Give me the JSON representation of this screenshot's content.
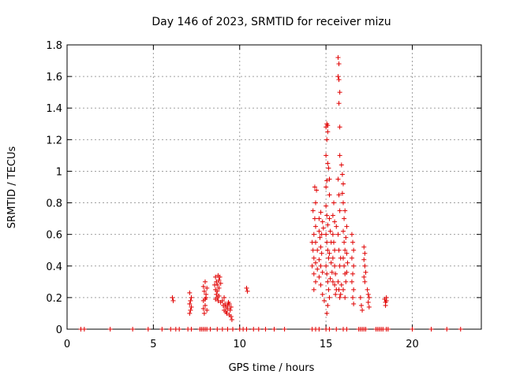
{
  "chart_data": {
    "type": "scatter",
    "title": "Day 146 of 2023, SRMTID for receiver mizu",
    "xlabel": "GPS time / hours",
    "ylabel": "SRMTID / TECUs",
    "xlim": [
      0,
      24
    ],
    "ylim": [
      0,
      1.8
    ],
    "xticks": [
      0,
      5,
      10,
      15,
      20
    ],
    "xtick_labels": [
      "0",
      "5",
      "10",
      "15",
      "20"
    ],
    "yticks": [
      0,
      0.2,
      0.4,
      0.6,
      0.8,
      1.0,
      1.2,
      1.4,
      1.6,
      1.8
    ],
    "ytick_labels": [
      "0",
      "0.2",
      "0.4",
      "0.6",
      "0.8",
      "1",
      "1.2",
      "1.4",
      "1.6",
      "1.8"
    ],
    "grid": true,
    "marker": "+",
    "marker_color": "#e00000",
    "series": [
      {
        "name": "mizu",
        "points": [
          [
            0.8,
            0.0
          ],
          [
            1.0,
            0.0
          ],
          [
            2.5,
            0.0
          ],
          [
            3.8,
            0.0
          ],
          [
            4.7,
            0.0
          ],
          [
            5.5,
            0.0
          ],
          [
            6.0,
            0.0
          ],
          [
            6.3,
            0.0
          ],
          [
            6.5,
            0.0
          ],
          [
            7.0,
            0.0
          ],
          [
            7.2,
            0.0
          ],
          [
            7.7,
            0.0
          ],
          [
            7.8,
            0.0
          ],
          [
            7.9,
            0.0
          ],
          [
            8.0,
            0.0
          ],
          [
            8.1,
            0.0
          ],
          [
            8.3,
            0.0
          ],
          [
            8.7,
            0.0
          ],
          [
            9.0,
            0.0
          ],
          [
            9.3,
            0.0
          ],
          [
            9.6,
            0.0
          ],
          [
            10.0,
            0.0
          ],
          [
            10.2,
            0.0
          ],
          [
            10.4,
            0.0
          ],
          [
            10.8,
            0.0
          ],
          [
            11.1,
            0.0
          ],
          [
            11.5,
            0.0
          ],
          [
            12.0,
            0.0
          ],
          [
            12.6,
            0.0
          ],
          [
            14.2,
            0.0
          ],
          [
            14.4,
            0.0
          ],
          [
            14.6,
            0.0
          ],
          [
            15.0,
            0.0
          ],
          [
            15.2,
            0.0
          ],
          [
            15.6,
            0.0
          ],
          [
            16.0,
            0.0
          ],
          [
            16.2,
            0.0
          ],
          [
            16.9,
            0.0
          ],
          [
            17.0,
            0.0
          ],
          [
            17.1,
            0.0
          ],
          [
            17.2,
            0.0
          ],
          [
            17.3,
            0.0
          ],
          [
            17.9,
            0.0
          ],
          [
            18.0,
            0.0
          ],
          [
            18.1,
            0.0
          ],
          [
            18.2,
            0.0
          ],
          [
            18.3,
            0.0
          ],
          [
            18.5,
            0.0
          ],
          [
            18.6,
            0.0
          ],
          [
            20.0,
            0.0
          ],
          [
            21.1,
            0.0
          ],
          [
            22.0,
            0.0
          ],
          [
            22.8,
            0.0
          ],
          [
            6.1,
            0.2
          ],
          [
            6.15,
            0.18
          ],
          [
            7.1,
            0.23
          ],
          [
            7.15,
            0.18
          ],
          [
            7.1,
            0.16
          ],
          [
            7.2,
            0.14
          ],
          [
            7.15,
            0.12
          ],
          [
            7.2,
            0.2
          ],
          [
            7.1,
            0.1
          ],
          [
            7.9,
            0.27
          ],
          [
            7.95,
            0.24
          ],
          [
            8.0,
            0.3
          ],
          [
            8.05,
            0.22
          ],
          [
            7.9,
            0.18
          ],
          [
            8.0,
            0.15
          ],
          [
            8.1,
            0.12
          ],
          [
            7.95,
            0.1
          ],
          [
            8.05,
            0.2
          ],
          [
            8.1,
            0.26
          ],
          [
            8.0,
            0.19
          ],
          [
            7.9,
            0.13
          ],
          [
            8.6,
            0.33
          ],
          [
            8.65,
            0.3
          ],
          [
            8.7,
            0.28
          ],
          [
            8.75,
            0.34
          ],
          [
            8.8,
            0.31
          ],
          [
            8.6,
            0.25
          ],
          [
            8.65,
            0.22
          ],
          [
            8.7,
            0.2
          ],
          [
            8.75,
            0.18
          ],
          [
            8.8,
            0.26
          ],
          [
            8.85,
            0.33
          ],
          [
            8.9,
            0.29
          ],
          [
            8.6,
            0.19
          ],
          [
            8.7,
            0.24
          ],
          [
            8.8,
            0.21
          ],
          [
            8.9,
            0.17
          ],
          [
            8.55,
            0.28
          ],
          [
            9.0,
            0.18
          ],
          [
            9.05,
            0.15
          ],
          [
            9.1,
            0.12
          ],
          [
            9.15,
            0.16
          ],
          [
            9.2,
            0.14
          ],
          [
            9.25,
            0.1
          ],
          [
            9.3,
            0.13
          ],
          [
            9.35,
            0.17
          ],
          [
            9.4,
            0.09
          ],
          [
            9.45,
            0.12
          ],
          [
            9.5,
            0.08
          ],
          [
            9.55,
            0.06
          ],
          [
            9.1,
            0.2
          ],
          [
            9.2,
            0.11
          ],
          [
            9.3,
            0.15
          ],
          [
            9.4,
            0.16
          ],
          [
            9.5,
            0.14
          ],
          [
            10.4,
            0.26
          ],
          [
            10.45,
            0.24
          ],
          [
            14.2,
            0.55
          ],
          [
            14.25,
            0.5
          ],
          [
            14.3,
            0.45
          ],
          [
            14.2,
            0.4
          ],
          [
            14.3,
            0.35
          ],
          [
            14.4,
            0.3
          ],
          [
            14.3,
            0.25
          ],
          [
            14.25,
            0.75
          ],
          [
            14.35,
            0.7
          ],
          [
            14.4,
            0.65
          ],
          [
            14.3,
            0.6
          ],
          [
            14.4,
            0.8
          ],
          [
            14.45,
            0.88
          ],
          [
            14.35,
            0.9
          ],
          [
            14.4,
            0.42
          ],
          [
            14.5,
            0.5
          ],
          [
            14.5,
            0.38
          ],
          [
            14.4,
            0.55
          ],
          [
            14.6,
            0.62
          ],
          [
            14.65,
            0.58
          ],
          [
            14.7,
            0.52
          ],
          [
            14.75,
            0.48
          ],
          [
            14.6,
            0.44
          ],
          [
            14.7,
            0.4
          ],
          [
            14.8,
            0.36
          ],
          [
            14.6,
            0.7
          ],
          [
            14.7,
            0.74
          ],
          [
            14.8,
            0.68
          ],
          [
            14.6,
            0.33
          ],
          [
            14.7,
            0.28
          ],
          [
            14.8,
            0.22
          ],
          [
            14.9,
            0.18
          ],
          [
            14.75,
            0.6
          ],
          [
            14.85,
            0.64
          ],
          [
            15.0,
            0.9
          ],
          [
            15.05,
            0.94
          ],
          [
            15.1,
            1.05
          ],
          [
            15.0,
            1.1
          ],
          [
            15.05,
            1.2
          ],
          [
            15.1,
            1.25
          ],
          [
            15.0,
            1.28
          ],
          [
            15.05,
            1.3
          ],
          [
            15.1,
            1.29
          ],
          [
            15.0,
            0.78
          ],
          [
            15.05,
            0.72
          ],
          [
            15.1,
            0.66
          ],
          [
            15.0,
            0.6
          ],
          [
            15.05,
            0.55
          ],
          [
            15.1,
            0.5
          ],
          [
            15.15,
            0.45
          ],
          [
            15.0,
            0.4
          ],
          [
            15.05,
            0.35
          ],
          [
            15.1,
            0.3
          ],
          [
            15.15,
            0.25
          ],
          [
            15.2,
            0.2
          ],
          [
            15.1,
            0.15
          ],
          [
            15.05,
            0.1
          ],
          [
            15.2,
            0.85
          ],
          [
            15.2,
            0.7
          ],
          [
            15.25,
            0.62
          ],
          [
            15.3,
            0.55
          ],
          [
            15.2,
            0.48
          ],
          [
            15.3,
            0.42
          ],
          [
            15.35,
            0.36
          ],
          [
            15.25,
            0.32
          ],
          [
            15.15,
            1.02
          ],
          [
            15.2,
            0.95
          ],
          [
            15.4,
            0.6
          ],
          [
            15.45,
            0.55
          ],
          [
            15.5,
            0.5
          ],
          [
            15.4,
            0.45
          ],
          [
            15.5,
            0.4
          ],
          [
            15.55,
            0.35
          ],
          [
            15.4,
            0.3
          ],
          [
            15.5,
            0.28
          ],
          [
            15.6,
            0.25
          ],
          [
            15.55,
            0.22
          ],
          [
            15.4,
            0.72
          ],
          [
            15.5,
            0.68
          ],
          [
            15.45,
            0.8
          ],
          [
            15.6,
            0.65
          ],
          [
            15.7,
            1.72
          ],
          [
            15.75,
            1.68
          ],
          [
            15.7,
            1.6
          ],
          [
            15.75,
            1.58
          ],
          [
            15.8,
            1.5
          ],
          [
            15.75,
            1.43
          ],
          [
            15.8,
            1.28
          ],
          [
            15.8,
            1.1
          ],
          [
            15.7,
            0.95
          ],
          [
            15.75,
            0.85
          ],
          [
            15.8,
            0.75
          ],
          [
            15.7,
            0.6
          ],
          [
            15.75,
            0.5
          ],
          [
            15.8,
            0.4
          ],
          [
            15.7,
            0.3
          ],
          [
            15.75,
            0.25
          ],
          [
            15.8,
            0.2
          ],
          [
            15.85,
            0.22
          ],
          [
            15.9,
            0.28
          ],
          [
            15.85,
            0.45
          ],
          [
            15.9,
            1.04
          ],
          [
            15.95,
            0.98
          ],
          [
            16.0,
            0.92
          ],
          [
            15.95,
            0.86
          ],
          [
            16.0,
            0.8
          ],
          [
            16.05,
            0.7
          ],
          [
            16.0,
            0.62
          ],
          [
            16.05,
            0.55
          ],
          [
            16.1,
            0.5
          ],
          [
            16.0,
            0.45
          ],
          [
            16.05,
            0.4
          ],
          [
            16.1,
            0.35
          ],
          [
            16.15,
            0.3
          ],
          [
            16.0,
            0.25
          ],
          [
            16.1,
            0.2
          ],
          [
            16.15,
            0.58
          ],
          [
            16.2,
            0.48
          ],
          [
            16.25,
            0.42
          ],
          [
            16.2,
            0.36
          ],
          [
            16.1,
            0.75
          ],
          [
            16.2,
            0.65
          ],
          [
            16.5,
            0.6
          ],
          [
            16.55,
            0.55
          ],
          [
            16.6,
            0.5
          ],
          [
            16.5,
            0.45
          ],
          [
            16.6,
            0.4
          ],
          [
            16.55,
            0.35
          ],
          [
            16.5,
            0.3
          ],
          [
            16.6,
            0.25
          ],
          [
            16.55,
            0.2
          ],
          [
            16.6,
            0.16
          ],
          [
            17.0,
            0.2
          ],
          [
            17.05,
            0.15
          ],
          [
            17.1,
            0.12
          ],
          [
            17.2,
            0.52
          ],
          [
            17.25,
            0.48
          ],
          [
            17.2,
            0.44
          ],
          [
            17.25,
            0.4
          ],
          [
            17.3,
            0.36
          ],
          [
            17.2,
            0.33
          ],
          [
            17.25,
            0.3
          ],
          [
            17.4,
            0.25
          ],
          [
            17.45,
            0.22
          ],
          [
            17.5,
            0.2
          ],
          [
            17.45,
            0.17
          ],
          [
            17.5,
            0.14
          ],
          [
            18.4,
            0.19
          ],
          [
            18.45,
            0.17
          ],
          [
            18.5,
            0.2
          ],
          [
            18.45,
            0.15
          ],
          [
            18.5,
            0.18
          ]
        ]
      }
    ]
  }
}
